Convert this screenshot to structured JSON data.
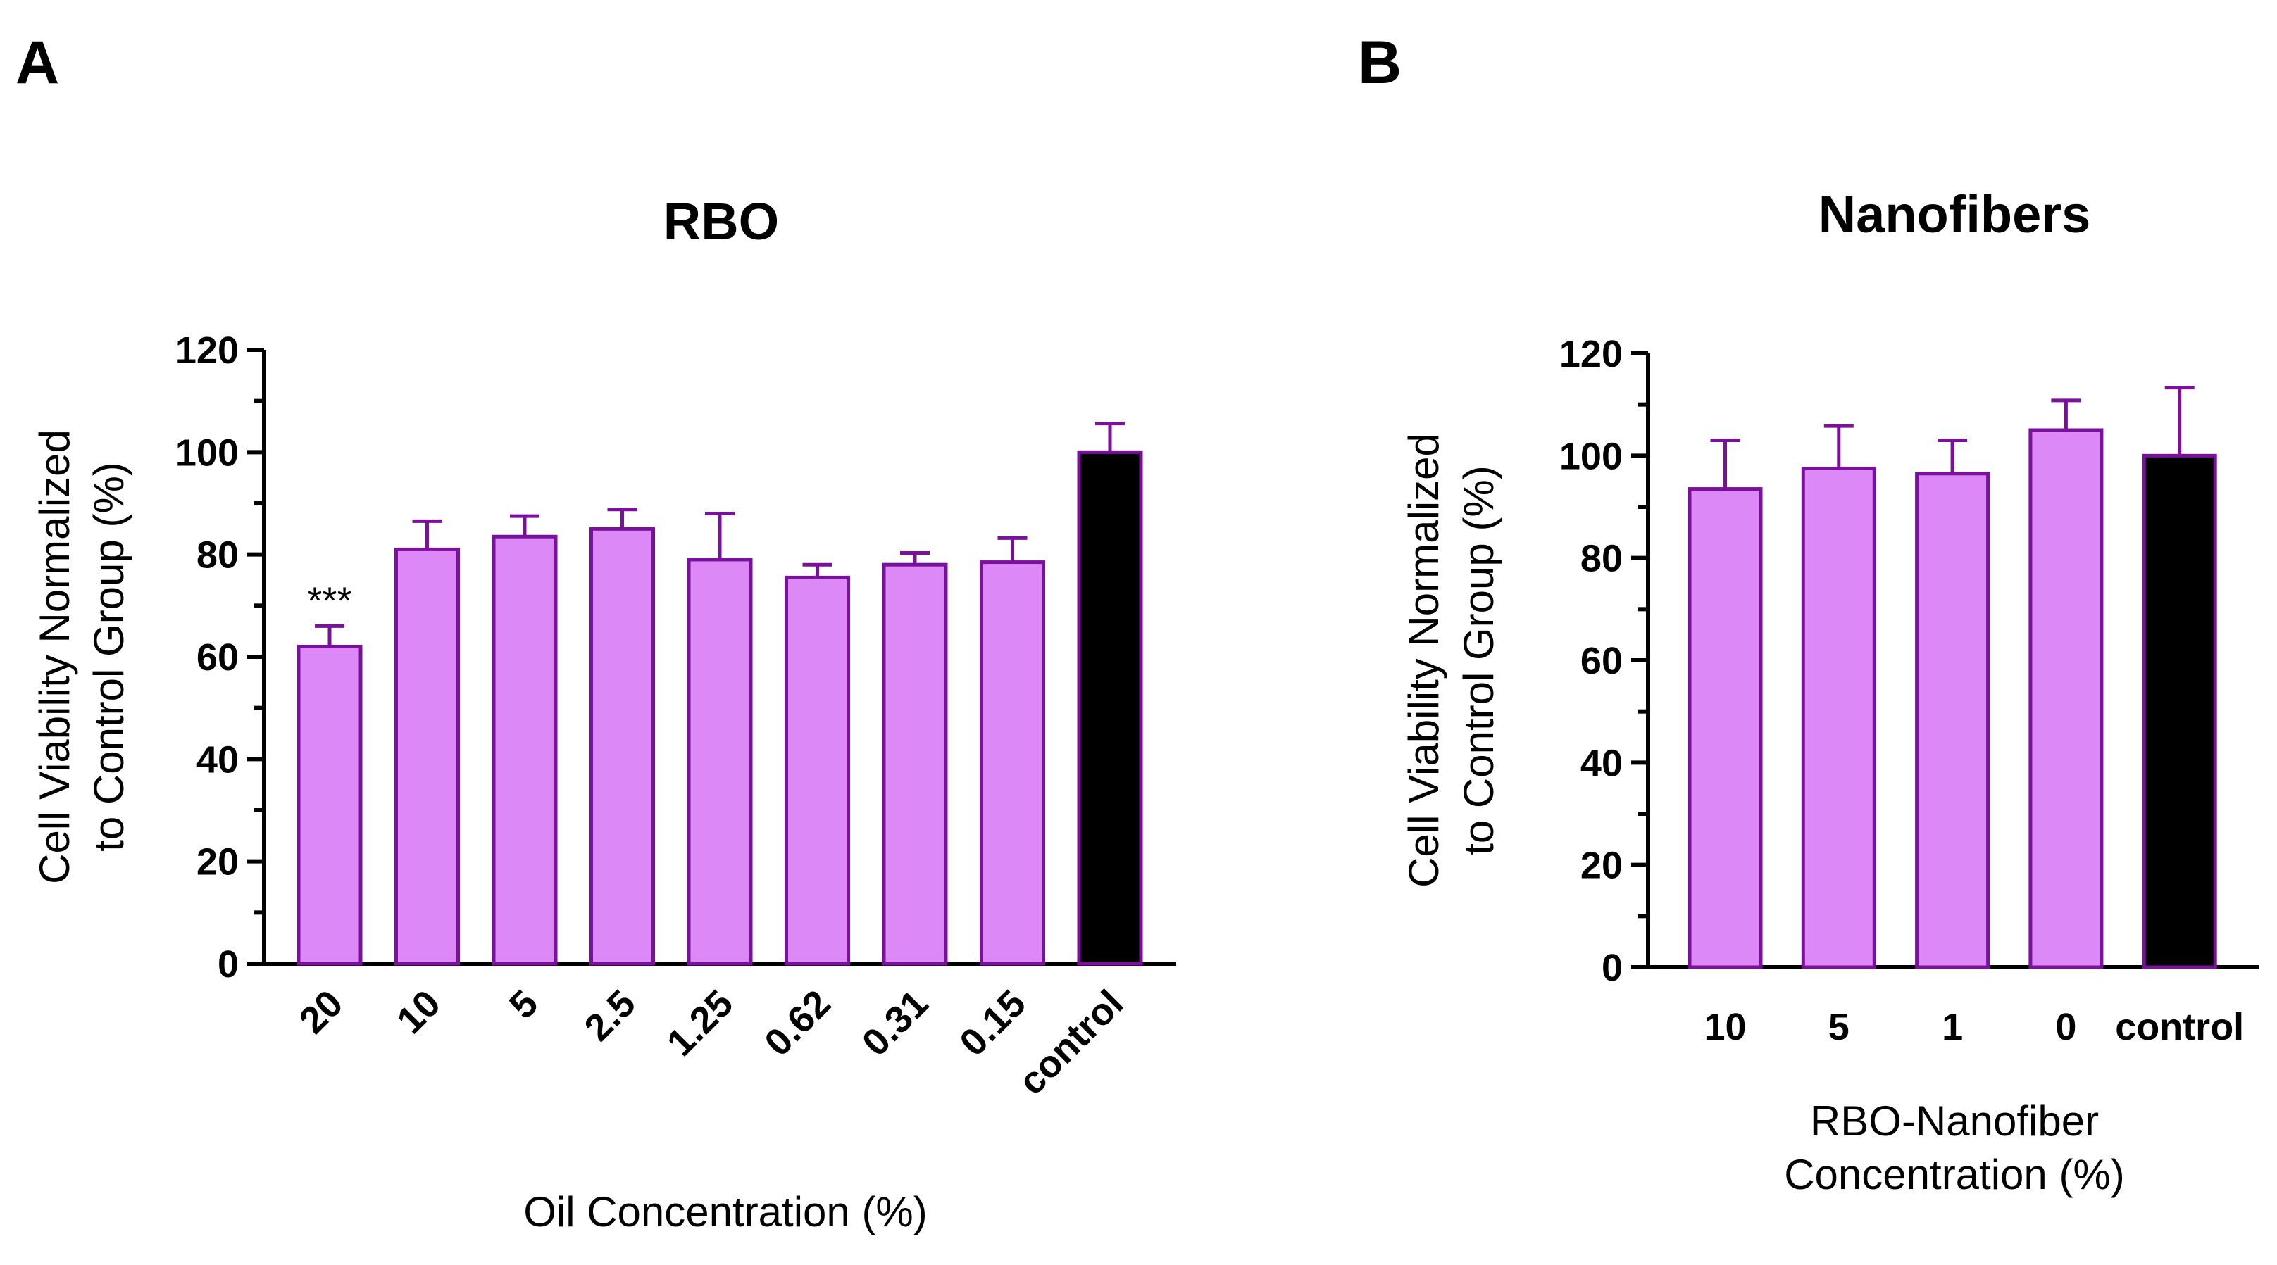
{
  "panels": [
    {
      "label": "A"
    },
    {
      "label": "B"
    }
  ],
  "chart_data": [
    {
      "type": "bar",
      "title": "RBO",
      "categories": [
        "20",
        "10",
        "5",
        "2.5",
        "1.25",
        "0.62",
        "0.31",
        "0.15",
        "control"
      ],
      "values": [
        62,
        81,
        83.5,
        85,
        79,
        75.5,
        78,
        78.5,
        100
      ],
      "errors": [
        4,
        5.5,
        4,
        3.8,
        9,
        2.5,
        2.3,
        4.7,
        5.6
      ],
      "ylabel": [
        "Cell Viability Normalized",
        "to Control Group (%)"
      ],
      "xlabel": [
        "Oil Concentration (%)"
      ],
      "ylim": [
        0,
        120
      ],
      "yticks": [
        0,
        20,
        40,
        60,
        80,
        100,
        120
      ],
      "grid": false,
      "colors": {
        "bar": "#DD88F7",
        "edge": "#7A119B",
        "control": "#000000"
      },
      "annotations": [
        {
          "category": "20",
          "text": "***"
        }
      ]
    },
    {
      "type": "bar",
      "title": "Nanofibers",
      "categories": [
        "10",
        "5",
        "1",
        "0",
        "control"
      ],
      "values": [
        93.5,
        97.5,
        96.5,
        105,
        100
      ],
      "errors": [
        9.5,
        8.3,
        6.5,
        5.8,
        13.3
      ],
      "ylabel": [
        "Cell Viability Normalized",
        "to Control Group (%)"
      ],
      "xlabel": [
        "RBO-Nanofiber",
        "Concentration (%)"
      ],
      "ylim": [
        0,
        120
      ],
      "yticks": [
        0,
        20,
        40,
        60,
        80,
        100,
        120
      ],
      "grid": false,
      "colors": {
        "bar": "#DD88F7",
        "edge": "#7A119B",
        "control": "#000000"
      },
      "annotations": []
    }
  ]
}
